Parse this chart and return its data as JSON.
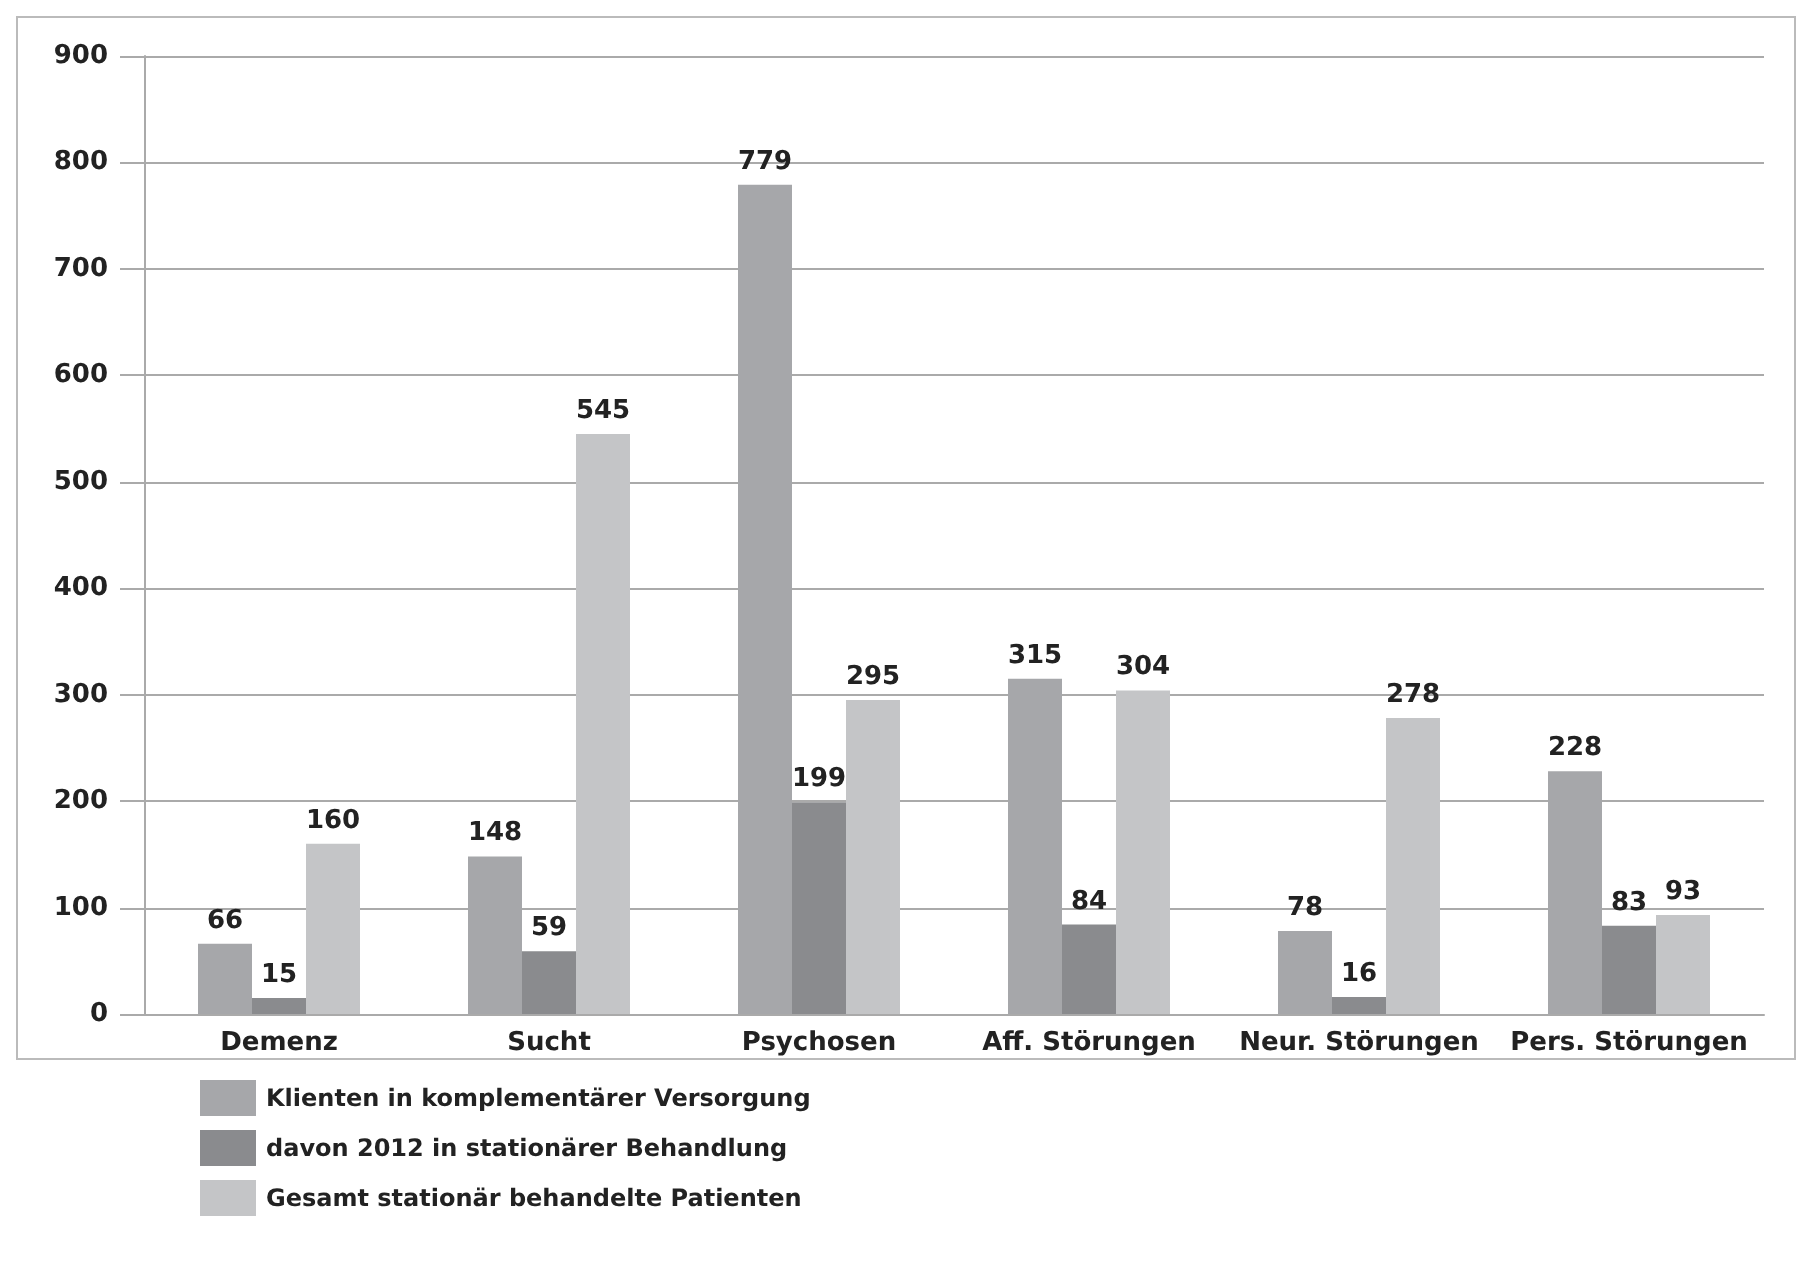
{
  "chart_data": {
    "type": "bar",
    "categories": [
      "Demenz",
      "Sucht",
      "Psychosen",
      "Aff. Störungen",
      "Neur. Störungen",
      "Pers. Störungen"
    ],
    "series": [
      {
        "name": "Klienten in komplementärer Versorgung",
        "color": "#a6a7aa",
        "values": [
          66,
          148,
          779,
          315,
          78,
          228
        ]
      },
      {
        "name": "davon 2012 in stationärer Behandlung",
        "color": "#8a8b8e",
        "values": [
          15,
          59,
          199,
          84,
          16,
          83
        ]
      },
      {
        "name": "Gesamt stationär behandelte Patienten",
        "color": "#c4c5c7",
        "values": [
          160,
          545,
          295,
          304,
          278,
          93
        ]
      }
    ],
    "ylim": [
      0,
      900
    ],
    "yticks": [
      0,
      100,
      200,
      300,
      400,
      500,
      600,
      700,
      800,
      900
    ],
    "grid": "y",
    "legend": "bottom left",
    "data_labels": true
  }
}
